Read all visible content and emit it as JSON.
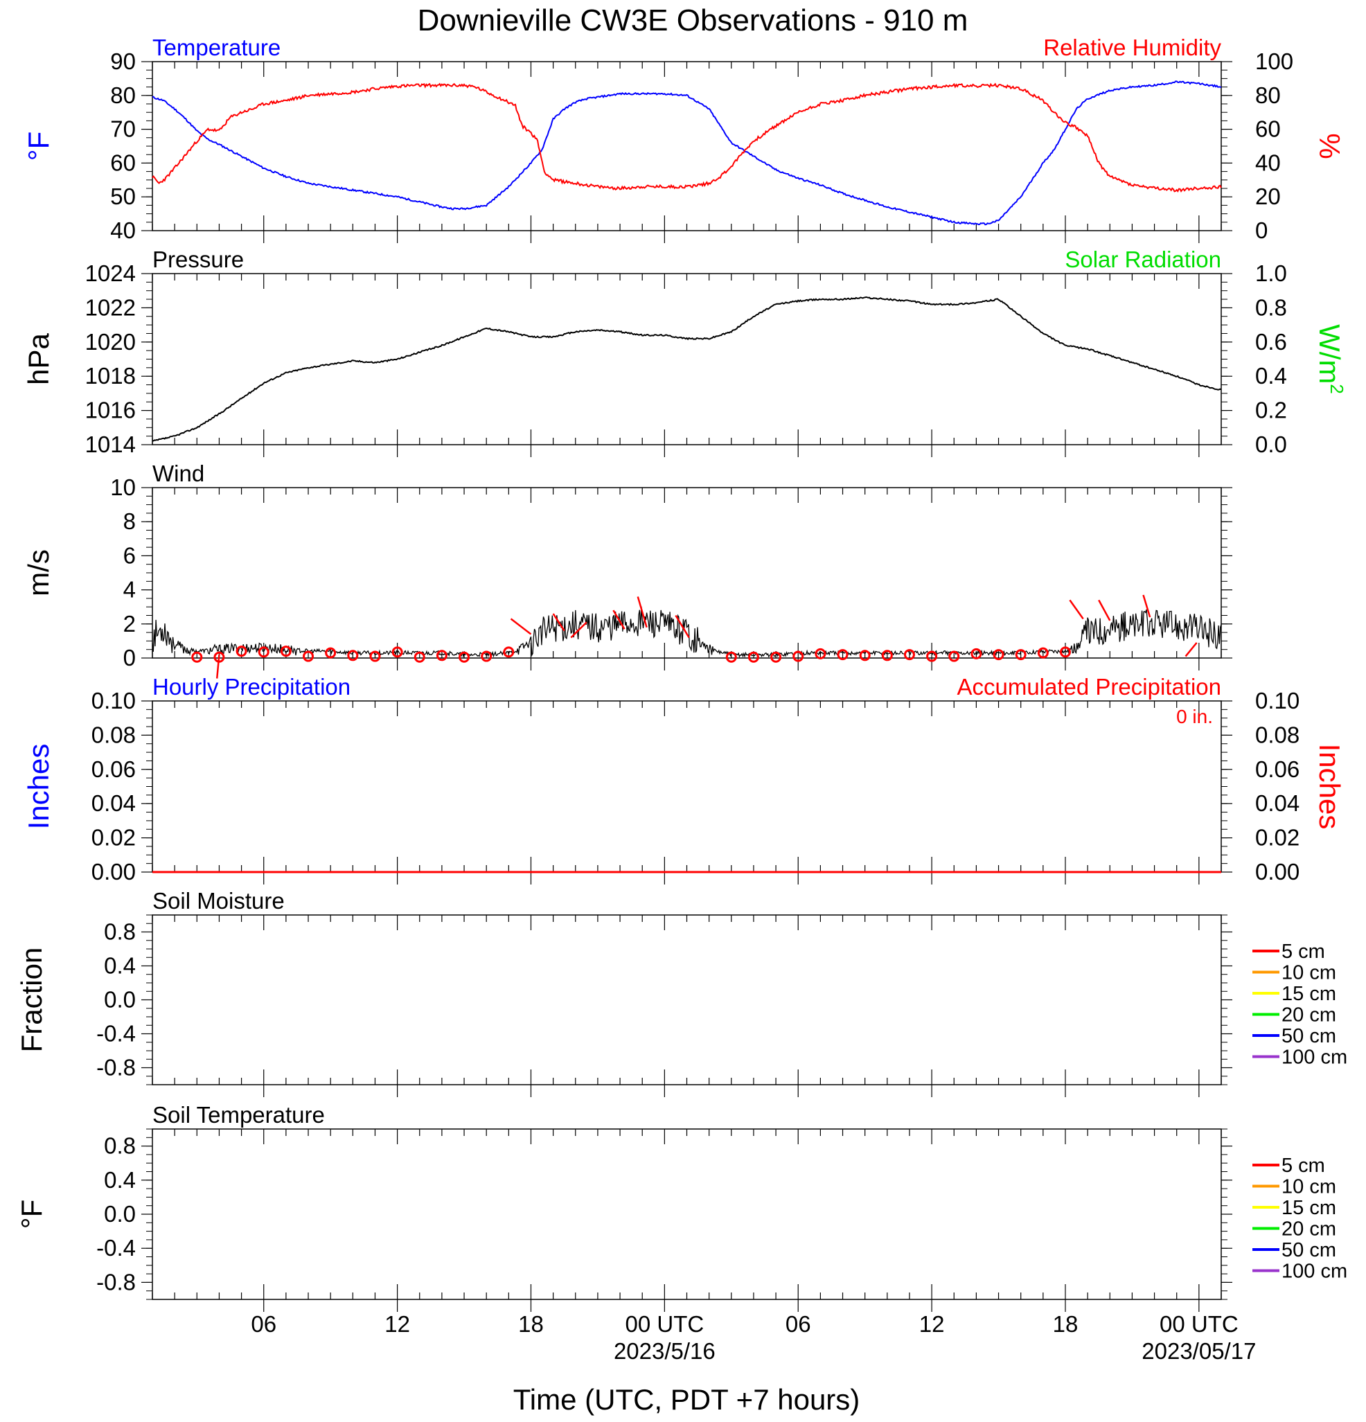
{
  "title": "Downieville CW3E Observations - 910 m",
  "time_axis": {
    "title": "Time (UTC, PDT +7 hours)",
    "range_hours": [
      0,
      48
    ],
    "ticks": [
      {
        "hour": 5,
        "label": "06"
      },
      {
        "hour": 11,
        "label": "12"
      },
      {
        "hour": 17,
        "label": "18"
      },
      {
        "hour": 23,
        "label": "00 UTC",
        "date": "2023/5/16"
      },
      {
        "hour": 29,
        "label": "06"
      },
      {
        "hour": 35,
        "label": "12"
      },
      {
        "hour": 41,
        "label": "18"
      },
      {
        "hour": 47,
        "label": "00 UTC",
        "date": "2023/05/17"
      }
    ]
  },
  "colors": {
    "temperature": "#0000ff",
    "humidity": "#ff0000",
    "pressure": "#000000",
    "solar": "#00dd00",
    "wind": "#000000",
    "wind_barbs": "#ff0000",
    "precip_hourly": "#0000ff",
    "precip_accum": "#ff0000"
  },
  "chart_data": [
    {
      "type": "line",
      "panel": "temperature-humidity",
      "left_title": "Temperature",
      "right_title": "Relative Humidity",
      "ylabel": "°F",
      "y2label": "%",
      "ylim": [
        40,
        90
      ],
      "y2lim": [
        0,
        100
      ],
      "yticks": [
        "90",
        "80",
        "70",
        "60",
        "50",
        "40"
      ],
      "y2ticks": [
        "100",
        "80",
        "60",
        "40",
        "20",
        "0"
      ],
      "series": [
        {
          "name": "Temperature",
          "axis": "left",
          "x": [
            0,
            0.5,
            1,
            1.5,
            2,
            2.5,
            3,
            4,
            5,
            6,
            7,
            8,
            9,
            10,
            11,
            12,
            13,
            13.5,
            14,
            14.5,
            15,
            16,
            17,
            17.5,
            18,
            18.5,
            19,
            19.5,
            20,
            21,
            22,
            23,
            24,
            25,
            25.5,
            26,
            27,
            28,
            29,
            30,
            31,
            32,
            33,
            34,
            35,
            36,
            37,
            37.5,
            38,
            39,
            40,
            40.5,
            41,
            41.5,
            42,
            43,
            44,
            45,
            46,
            47,
            48
          ],
          "values": [
            79.5,
            78.5,
            76,
            73,
            69.5,
            67,
            65.5,
            62,
            58.5,
            56,
            54,
            53,
            52,
            51,
            50,
            48.5,
            47,
            46.5,
            46.5,
            47,
            47.5,
            53,
            60,
            64,
            73,
            76,
            78,
            79,
            79.5,
            80.5,
            80.5,
            80.5,
            80,
            76,
            71,
            66,
            62,
            58,
            55.5,
            53.5,
            51,
            49,
            47,
            45.5,
            44,
            42.5,
            42,
            42,
            43,
            50,
            60,
            64,
            70,
            76,
            79,
            81.5,
            82.5,
            83,
            84,
            83.5,
            82.5
          ]
        },
        {
          "name": "Relative Humidity",
          "axis": "right",
          "x": [
            0,
            0.3,
            0.6,
            1,
            1.5,
            2,
            2.5,
            3,
            3.5,
            4,
            4.5,
            5,
            6,
            7,
            8,
            9,
            10,
            11,
            12,
            13,
            14,
            14.5,
            15,
            15.5,
            16,
            16.3,
            16.6,
            17,
            17.3,
            17.6,
            18,
            19,
            20,
            21,
            22,
            23,
            24,
            25,
            25.5,
            26,
            26.5,
            27,
            28,
            29,
            30,
            31,
            32,
            33,
            34,
            35,
            36,
            37,
            38,
            38.5,
            39,
            40,
            40.5,
            41,
            41.5,
            42,
            42.5,
            43,
            44,
            45,
            46,
            47,
            48
          ],
          "values": [
            32,
            28,
            31,
            37,
            45,
            53,
            60,
            59,
            67,
            70,
            72,
            75,
            77,
            80,
            81,
            82,
            84,
            85.5,
            86,
            86,
            86,
            85,
            82,
            79,
            76,
            74,
            62,
            58,
            53,
            35,
            30,
            28,
            26,
            25,
            26,
            26,
            26,
            28,
            32,
            38,
            46,
            53,
            62,
            70,
            75,
            77,
            80,
            82,
            84,
            85,
            86,
            85.5,
            86,
            85,
            84,
            77,
            70,
            64,
            61,
            56,
            40,
            32,
            27,
            25,
            24,
            25,
            26
          ]
        }
      ]
    },
    {
      "type": "line",
      "panel": "pressure-solar",
      "left_title": "Pressure",
      "right_title": "Solar Radiation",
      "ylabel": "hPa",
      "y2label": "W/m",
      "y2label_sup": "2",
      "ylim": [
        1014,
        1024
      ],
      "y2lim": [
        0,
        1
      ],
      "yticks": [
        "1024",
        "1022",
        "1020",
        "1018",
        "1016",
        "1014"
      ],
      "y2ticks": [
        "1.0",
        "0.8",
        "0.6",
        "0.4",
        "0.2",
        "0.0"
      ],
      "series": [
        {
          "name": "Pressure",
          "axis": "left",
          "x": [
            0,
            1,
            2,
            3,
            4,
            5,
            6,
            7,
            8,
            9,
            10,
            11,
            12,
            13,
            14,
            15,
            16,
            17,
            18,
            19,
            20,
            21,
            22,
            23,
            24,
            25,
            26,
            27,
            28,
            29,
            30,
            31,
            32,
            33,
            34,
            35,
            36,
            37,
            38,
            39,
            40,
            41,
            42,
            43,
            44,
            45,
            46,
            47,
            48
          ],
          "values": [
            1014.2,
            1014.5,
            1015,
            1015.8,
            1016.7,
            1017.6,
            1018.2,
            1018.5,
            1018.7,
            1018.9,
            1018.8,
            1019,
            1019.4,
            1019.8,
            1020.3,
            1020.8,
            1020.6,
            1020.3,
            1020.3,
            1020.6,
            1020.7,
            1020.6,
            1020.4,
            1020.4,
            1020.2,
            1020.2,
            1020.6,
            1021.5,
            1022.2,
            1022.4,
            1022.5,
            1022.5,
            1022.6,
            1022.5,
            1022.4,
            1022.2,
            1022.2,
            1022.3,
            1022.5,
            1021.5,
            1020.5,
            1019.8,
            1019.6,
            1019.2,
            1018.8,
            1018.4,
            1018,
            1017.5,
            1017.2
          ]
        }
      ]
    },
    {
      "type": "line",
      "panel": "wind",
      "left_title": "Wind",
      "ylabel": "m/s",
      "ylim": [
        0,
        10
      ],
      "yticks": [
        "10",
        "8",
        "6",
        "4",
        "2",
        "0"
      ],
      "series": [
        {
          "name": "Wind speed",
          "x": [
            0,
            0.5,
            1,
            1.5,
            2,
            3,
            4,
            5,
            6,
            7,
            8,
            9,
            10,
            11,
            12,
            13,
            14,
            15,
            16,
            16.5,
            17,
            17.5,
            18,
            19,
            20,
            21,
            22,
            23,
            24,
            24.5,
            25,
            26,
            27,
            28,
            29,
            30,
            31,
            32,
            33,
            34,
            35,
            36,
            37,
            38,
            39,
            40,
            41,
            41.5,
            42,
            43,
            44,
            45,
            46,
            47,
            48
          ],
          "values": [
            1.2,
            1.8,
            0.8,
            0.5,
            0.4,
            0.5,
            0.6,
            0.6,
            0.5,
            0.4,
            0.4,
            0.3,
            0.3,
            0.3,
            0.3,
            0.3,
            0.2,
            0.2,
            0.3,
            0.5,
            1.0,
            1.5,
            1.8,
            2.0,
            1.8,
            2.0,
            2.2,
            1.9,
            1.6,
            1.0,
            0.5,
            0.2,
            0.2,
            0.2,
            0.3,
            0.3,
            0.3,
            0.3,
            0.3,
            0.3,
            0.3,
            0.3,
            0.3,
            0.3,
            0.3,
            0.4,
            0.4,
            0.6,
            1.5,
            1.8,
            1.9,
            2.0,
            1.9,
            1.7,
            1.3
          ]
        }
      ],
      "barb_stations": [
        {
          "x": 2,
          "v": 0.05
        },
        {
          "x": 3,
          "v": 0.05
        },
        {
          "x": 4,
          "v": 0.4
        },
        {
          "x": 5,
          "v": 0.35
        },
        {
          "x": 6,
          "v": 0.4
        },
        {
          "x": 7,
          "v": 0.1
        },
        {
          "x": 8,
          "v": 0.3
        },
        {
          "x": 9,
          "v": 0.15
        },
        {
          "x": 10,
          "v": 0.1
        },
        {
          "x": 11,
          "v": 0.35
        },
        {
          "x": 12,
          "v": 0.05
        },
        {
          "x": 13,
          "v": 0.15
        },
        {
          "x": 14,
          "v": 0.05
        },
        {
          "x": 15,
          "v": 0.1
        },
        {
          "x": 16,
          "v": 0.35
        },
        {
          "x": 26,
          "v": 0.05
        },
        {
          "x": 27,
          "v": 0.05
        },
        {
          "x": 28,
          "v": 0.05
        },
        {
          "x": 29,
          "v": 0.1
        },
        {
          "x": 30,
          "v": 0.25
        },
        {
          "x": 31,
          "v": 0.2
        },
        {
          "x": 32,
          "v": 0.15
        },
        {
          "x": 33,
          "v": 0.15
        },
        {
          "x": 34,
          "v": 0.2
        },
        {
          "x": 35,
          "v": 0.1
        },
        {
          "x": 36,
          "v": 0.1
        },
        {
          "x": 37,
          "v": 0.25
        },
        {
          "x": 38,
          "v": 0.2
        },
        {
          "x": 39,
          "v": 0.2
        },
        {
          "x": 40,
          "v": 0.3
        },
        {
          "x": 41,
          "v": 0.35
        }
      ],
      "barb_segments": [
        {
          "x1": 2.9,
          "y1": -1.2,
          "x2": 3.0,
          "y2": 0.2
        },
        {
          "x1": 16.1,
          "y1": 2.3,
          "x2": 17.0,
          "y2": 1.4
        },
        {
          "x1": 18.0,
          "y1": 2.6,
          "x2": 18.5,
          "y2": 1.6
        },
        {
          "x1": 18.8,
          "y1": 1.2,
          "x2": 19.5,
          "y2": 2.1
        },
        {
          "x1": 20.7,
          "y1": 2.8,
          "x2": 21.2,
          "y2": 1.7
        },
        {
          "x1": 21.8,
          "y1": 3.6,
          "x2": 22.2,
          "y2": 1.8
        },
        {
          "x1": 23.5,
          "y1": 2.5,
          "x2": 24.1,
          "y2": 1.2
        },
        {
          "x1": 41.2,
          "y1": 3.4,
          "x2": 41.8,
          "y2": 2.3
        },
        {
          "x1": 42.5,
          "y1": 3.4,
          "x2": 43.0,
          "y2": 2.2
        },
        {
          "x1": 44.5,
          "y1": 3.7,
          "x2": 44.8,
          "y2": 2.4
        },
        {
          "x1": 46.4,
          "y1": 0.1,
          "x2": 46.9,
          "y2": 0.9
        }
      ]
    },
    {
      "type": "line",
      "panel": "precipitation",
      "left_title": "Hourly Precipitation",
      "right_title": "Accumulated Precipitation",
      "annotation": "0 in.",
      "ylabel": "Inches",
      "y2label": "Inches",
      "ylim": [
        0,
        0.1
      ],
      "y2lim": [
        0,
        0.1
      ],
      "yticks": [
        "0.10",
        "0.08",
        "0.06",
        "0.04",
        "0.02",
        "0.00"
      ],
      "y2ticks": [
        "0.10",
        "0.08",
        "0.06",
        "0.04",
        "0.02",
        "0.00"
      ],
      "series": [
        {
          "name": "Accumulated Precipitation",
          "x": [
            0,
            48
          ],
          "values": [
            0,
            0
          ]
        }
      ]
    },
    {
      "type": "line",
      "panel": "soil-moisture",
      "left_title": "Soil Moisture",
      "ylabel": "Fraction",
      "ylim": [
        -1,
        1
      ],
      "yticks": [
        "0.8",
        "0.4",
        "0.0",
        "-0.4",
        "-0.8"
      ],
      "legend": [
        {
          "label": "5 cm",
          "color": "#ff0000"
        },
        {
          "label": "10 cm",
          "color": "#ff9900"
        },
        {
          "label": "15 cm",
          "color": "#ffff00"
        },
        {
          "label": "20 cm",
          "color": "#00ee00"
        },
        {
          "label": "50 cm",
          "color": "#0000ff"
        },
        {
          "label": "100 cm",
          "color": "#9933cc"
        }
      ]
    },
    {
      "type": "line",
      "panel": "soil-temperature",
      "left_title": "Soil Temperature",
      "ylabel": "°F",
      "ylim": [
        -1,
        1
      ],
      "yticks": [
        "0.8",
        "0.4",
        "0.0",
        "-0.4",
        "-0.8"
      ],
      "legend": [
        {
          "label": "5 cm",
          "color": "#ff0000"
        },
        {
          "label": "10 cm",
          "color": "#ff9900"
        },
        {
          "label": "15 cm",
          "color": "#ffff00"
        },
        {
          "label": "20 cm",
          "color": "#00ee00"
        },
        {
          "label": "50 cm",
          "color": "#0000ff"
        },
        {
          "label": "100 cm",
          "color": "#9933cc"
        }
      ]
    }
  ]
}
